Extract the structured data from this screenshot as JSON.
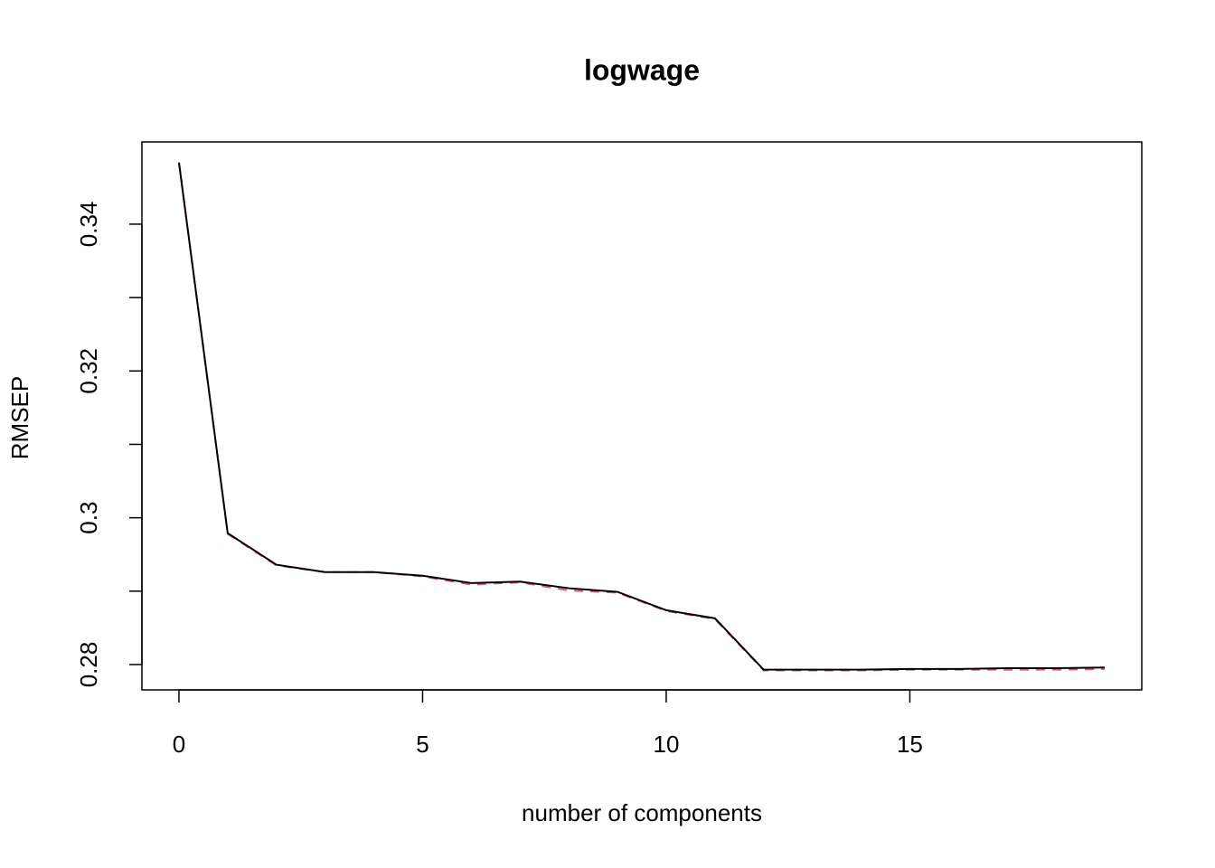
{
  "chart_data": {
    "type": "line",
    "title": "logwage",
    "xlabel": "number of components",
    "ylabel": "RMSEP",
    "x": [
      0,
      1,
      2,
      3,
      4,
      5,
      6,
      7,
      8,
      9,
      10,
      11,
      12,
      13,
      14,
      15,
      16,
      17,
      18,
      19
    ],
    "series": [
      {
        "color": "#000000",
        "dash": "solid",
        "values": [
          0.3484,
          0.2979,
          0.2936,
          0.2926,
          0.2926,
          0.2921,
          0.2911,
          0.2913,
          0.2904,
          0.2899,
          0.2874,
          0.2863,
          0.2793,
          0.2793,
          0.2793,
          0.2794,
          0.2794,
          0.2795,
          0.2795,
          0.2796
        ]
      },
      {
        "color": "#DF536B",
        "dash": "dashed",
        "values": [
          0.3484,
          0.2978,
          0.2935,
          0.2926,
          0.2926,
          0.292,
          0.2909,
          0.2912,
          0.2901,
          0.2898,
          0.2873,
          0.2862,
          0.2792,
          0.2792,
          0.2792,
          0.2793,
          0.2793,
          0.2793,
          0.2793,
          0.2794
        ]
      }
    ],
    "xlim": [
      -0.76,
      19.76
    ],
    "ylim": [
      0.27655,
      0.3512
    ],
    "xticks": [
      0,
      5,
      10,
      15
    ],
    "yticks": [
      0.28,
      0.3,
      0.32,
      0.34
    ],
    "yminorticks": [
      0.29,
      0.31,
      0.33
    ]
  }
}
